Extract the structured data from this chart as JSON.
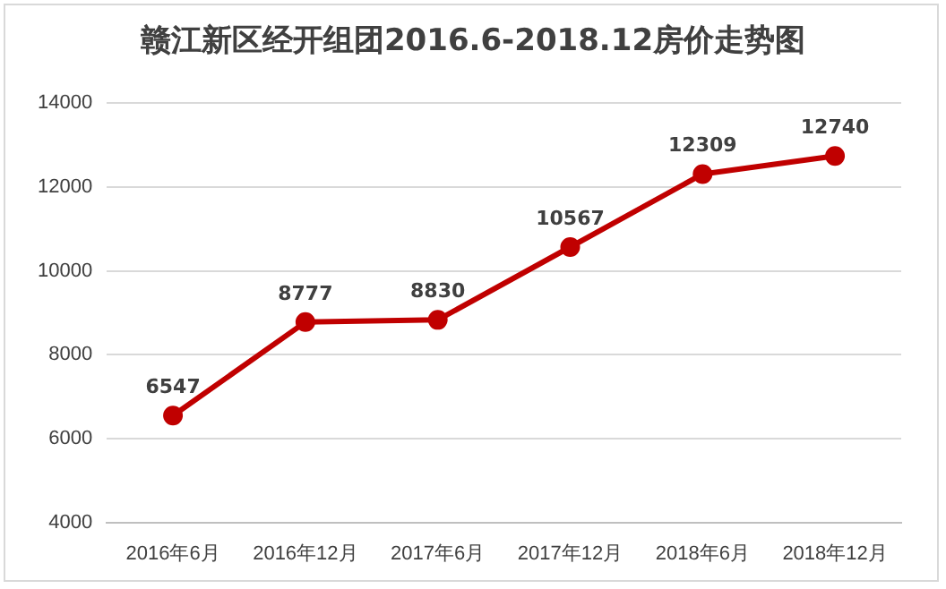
{
  "chart_data": {
    "type": "line",
    "title": "赣江新区经开组团2016.6-2018.12房价走势图",
    "categories": [
      "2016年6月",
      "2016年12月",
      "2017年6月",
      "2017年12月",
      "2018年6月",
      "2018年12月"
    ],
    "series": [
      {
        "color": "#c00000",
        "values": [
          6547,
          8777,
          8830,
          10567,
          12309,
          12740
        ]
      }
    ],
    "ylim": [
      4000,
      14000
    ],
    "yticks": [
      4000,
      6000,
      8000,
      10000,
      12000,
      14000
    ],
    "grid": "y",
    "legend": false,
    "marker": "circle",
    "line_style": "solid",
    "data_labels": true
  }
}
